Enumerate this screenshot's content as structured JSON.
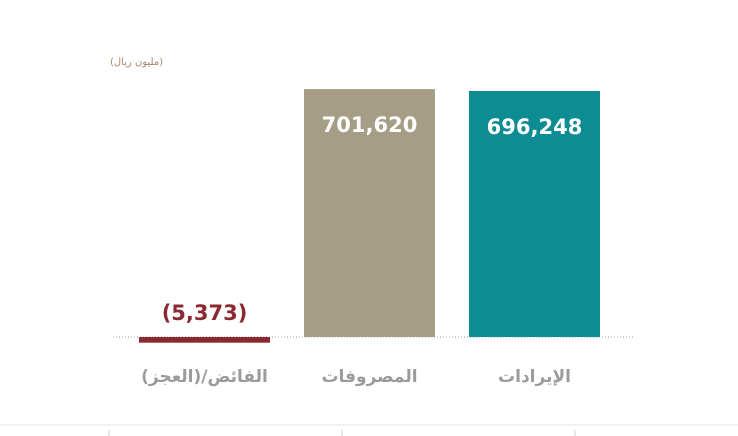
{
  "chart_data": {
    "type": "bar",
    "unit_label": "(مليون ريال)",
    "categories": [
      "الفائض/(العجز)",
      "المصروفات",
      "الإيرادات"
    ],
    "values": [
      -5373,
      701620,
      696248
    ],
    "value_labels": [
      "(5,373)",
      "701,620",
      "696,248"
    ],
    "bar_colors": [
      "#8a2a30",
      "#a59d86",
      "#0d8d93"
    ],
    "label_colors": [
      "#8a2a30",
      "#ffffff",
      "#ffffff"
    ],
    "category_label_color": "#9b9b9b",
    "axis_color": "#9e9e9e",
    "ylim": [
      -12000,
      750000
    ],
    "grid": false,
    "legend": "none"
  }
}
